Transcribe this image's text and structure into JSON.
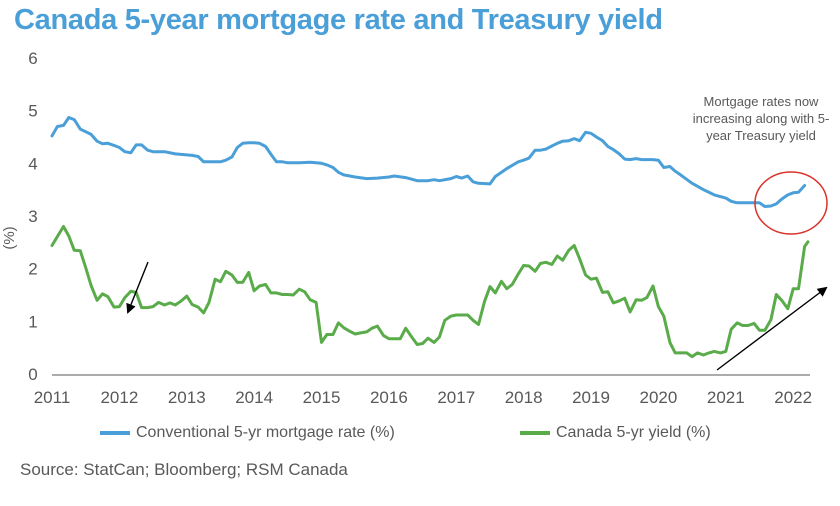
{
  "title": "Canada 5-year mortgage rate and Treasury yield",
  "source": "Source: StatCan; Bloomberg; RSM Canada",
  "annotation": "Mortgage rates now increasing along with 5-year Treasury yield",
  "colors": {
    "title": "#4a9fd8",
    "mortgage": "#4a9fd8",
    "yield": "#5aab4a",
    "highlight_circle": "#d9342b",
    "arrow": "#000000"
  },
  "chart_data": {
    "type": "line",
    "title": "Canada 5-year mortgage rate and Treasury yield",
    "xlabel": "",
    "ylabel": "(%)",
    "xlim": [
      2011,
      2022.25
    ],
    "ylim": [
      0,
      6
    ],
    "x_ticks": [
      "2011",
      "2012",
      "2013",
      "2014",
      "2015",
      "2016",
      "2017",
      "2018",
      "2019",
      "2020",
      "2021",
      "2022"
    ],
    "y_ticks": [
      "0",
      "1",
      "2",
      "3",
      "4",
      "5",
      "6"
    ],
    "grid": false,
    "legend_position": "bottom",
    "series": [
      {
        "name": "Conventional 5-yr mortgage rate (%)",
        "color": "#4a9fd8",
        "points": [
          [
            2011.0,
            4.52
          ],
          [
            2011.08,
            4.7
          ],
          [
            2011.17,
            4.72
          ],
          [
            2011.25,
            4.87
          ],
          [
            2011.33,
            4.83
          ],
          [
            2011.42,
            4.65
          ],
          [
            2011.5,
            4.6
          ],
          [
            2011.58,
            4.55
          ],
          [
            2011.67,
            4.42
          ],
          [
            2011.75,
            4.37
          ],
          [
            2011.83,
            4.38
          ],
          [
            2011.92,
            4.34
          ],
          [
            2012.0,
            4.3
          ],
          [
            2012.08,
            4.22
          ],
          [
            2012.17,
            4.2
          ],
          [
            2012.25,
            4.35
          ],
          [
            2012.33,
            4.35
          ],
          [
            2012.42,
            4.25
          ],
          [
            2012.5,
            4.22
          ],
          [
            2012.67,
            4.22
          ],
          [
            2012.83,
            4.18
          ],
          [
            2013.0,
            4.16
          ],
          [
            2013.08,
            4.15
          ],
          [
            2013.17,
            4.13
          ],
          [
            2013.25,
            4.03
          ],
          [
            2013.42,
            4.03
          ],
          [
            2013.5,
            4.03
          ],
          [
            2013.58,
            4.06
          ],
          [
            2013.67,
            4.12
          ],
          [
            2013.75,
            4.3
          ],
          [
            2013.83,
            4.38
          ],
          [
            2013.92,
            4.39
          ],
          [
            2014.0,
            4.39
          ],
          [
            2014.08,
            4.38
          ],
          [
            2014.17,
            4.32
          ],
          [
            2014.25,
            4.17
          ],
          [
            2014.33,
            4.03
          ],
          [
            2014.42,
            4.03
          ],
          [
            2014.5,
            4.01
          ],
          [
            2014.67,
            4.01
          ],
          [
            2014.83,
            4.02
          ],
          [
            2015.0,
            4.0
          ],
          [
            2015.08,
            3.97
          ],
          [
            2015.17,
            3.92
          ],
          [
            2015.25,
            3.83
          ],
          [
            2015.33,
            3.78
          ],
          [
            2015.5,
            3.74
          ],
          [
            2015.67,
            3.71
          ],
          [
            2015.83,
            3.72
          ],
          [
            2016.0,
            3.74
          ],
          [
            2016.08,
            3.76
          ],
          [
            2016.25,
            3.73
          ],
          [
            2016.42,
            3.67
          ],
          [
            2016.58,
            3.67
          ],
          [
            2016.67,
            3.69
          ],
          [
            2016.75,
            3.67
          ],
          [
            2016.92,
            3.71
          ],
          [
            2017.0,
            3.75
          ],
          [
            2017.08,
            3.72
          ],
          [
            2017.17,
            3.76
          ],
          [
            2017.25,
            3.65
          ],
          [
            2017.33,
            3.62
          ],
          [
            2017.5,
            3.61
          ],
          [
            2017.58,
            3.75
          ],
          [
            2017.75,
            3.9
          ],
          [
            2017.92,
            4.03
          ],
          [
            2018.0,
            4.06
          ],
          [
            2018.08,
            4.1
          ],
          [
            2018.17,
            4.25
          ],
          [
            2018.25,
            4.25
          ],
          [
            2018.33,
            4.27
          ],
          [
            2018.42,
            4.33
          ],
          [
            2018.5,
            4.38
          ],
          [
            2018.58,
            4.42
          ],
          [
            2018.67,
            4.43
          ],
          [
            2018.75,
            4.47
          ],
          [
            2018.83,
            4.43
          ],
          [
            2018.92,
            4.59
          ],
          [
            2019.0,
            4.57
          ],
          [
            2019.08,
            4.5
          ],
          [
            2019.17,
            4.43
          ],
          [
            2019.25,
            4.32
          ],
          [
            2019.33,
            4.26
          ],
          [
            2019.42,
            4.18
          ],
          [
            2019.5,
            4.08
          ],
          [
            2019.58,
            4.07
          ],
          [
            2019.67,
            4.09
          ],
          [
            2019.75,
            4.07
          ],
          [
            2019.83,
            4.07
          ],
          [
            2019.92,
            4.07
          ],
          [
            2020.0,
            4.06
          ],
          [
            2020.08,
            3.92
          ],
          [
            2020.17,
            3.94
          ],
          [
            2020.25,
            3.85
          ],
          [
            2020.33,
            3.78
          ],
          [
            2020.5,
            3.62
          ],
          [
            2020.67,
            3.5
          ],
          [
            2020.83,
            3.4
          ],
          [
            2021.0,
            3.34
          ],
          [
            2021.08,
            3.28
          ],
          [
            2021.17,
            3.25
          ],
          [
            2021.33,
            3.25
          ],
          [
            2021.5,
            3.25
          ],
          [
            2021.58,
            3.18
          ],
          [
            2021.67,
            3.19
          ],
          [
            2021.75,
            3.23
          ],
          [
            2021.83,
            3.32
          ],
          [
            2021.92,
            3.4
          ],
          [
            2022.0,
            3.44
          ],
          [
            2022.08,
            3.45
          ],
          [
            2022.17,
            3.58
          ]
        ]
      },
      {
        "name": "Canada 5-yr yield (%)",
        "color": "#5aab4a",
        "points": [
          [
            2011.0,
            2.44
          ],
          [
            2011.08,
            2.61
          ],
          [
            2011.17,
            2.8
          ],
          [
            2011.25,
            2.62
          ],
          [
            2011.33,
            2.35
          ],
          [
            2011.42,
            2.34
          ],
          [
            2011.5,
            2.02
          ],
          [
            2011.58,
            1.68
          ],
          [
            2011.67,
            1.4
          ],
          [
            2011.75,
            1.52
          ],
          [
            2011.83,
            1.47
          ],
          [
            2011.92,
            1.27
          ],
          [
            2012.0,
            1.28
          ],
          [
            2012.08,
            1.45
          ],
          [
            2012.17,
            1.57
          ],
          [
            2012.25,
            1.55
          ],
          [
            2012.33,
            1.26
          ],
          [
            2012.42,
            1.26
          ],
          [
            2012.5,
            1.28
          ],
          [
            2012.58,
            1.36
          ],
          [
            2012.67,
            1.31
          ],
          [
            2012.75,
            1.35
          ],
          [
            2012.83,
            1.31
          ],
          [
            2012.92,
            1.39
          ],
          [
            2013.0,
            1.48
          ],
          [
            2013.08,
            1.32
          ],
          [
            2013.17,
            1.27
          ],
          [
            2013.25,
            1.16
          ],
          [
            2013.33,
            1.36
          ],
          [
            2013.42,
            1.8
          ],
          [
            2013.5,
            1.75
          ],
          [
            2013.58,
            1.95
          ],
          [
            2013.67,
            1.88
          ],
          [
            2013.75,
            1.74
          ],
          [
            2013.83,
            1.74
          ],
          [
            2013.92,
            1.93
          ],
          [
            2014.0,
            1.58
          ],
          [
            2014.08,
            1.67
          ],
          [
            2014.17,
            1.7
          ],
          [
            2014.25,
            1.54
          ],
          [
            2014.33,
            1.54
          ],
          [
            2014.42,
            1.51
          ],
          [
            2014.5,
            1.51
          ],
          [
            2014.58,
            1.5
          ],
          [
            2014.67,
            1.61
          ],
          [
            2014.75,
            1.56
          ],
          [
            2014.83,
            1.41
          ],
          [
            2014.92,
            1.36
          ],
          [
            2015.0,
            0.6
          ],
          [
            2015.08,
            0.75
          ],
          [
            2015.17,
            0.75
          ],
          [
            2015.25,
            0.97
          ],
          [
            2015.33,
            0.88
          ],
          [
            2015.42,
            0.81
          ],
          [
            2015.5,
            0.76
          ],
          [
            2015.58,
            0.78
          ],
          [
            2015.67,
            0.8
          ],
          [
            2015.75,
            0.87
          ],
          [
            2015.83,
            0.91
          ],
          [
            2015.92,
            0.73
          ],
          [
            2016.0,
            0.67
          ],
          [
            2016.17,
            0.67
          ],
          [
            2016.25,
            0.87
          ],
          [
            2016.33,
            0.72
          ],
          [
            2016.42,
            0.56
          ],
          [
            2016.5,
            0.58
          ],
          [
            2016.58,
            0.68
          ],
          [
            2016.67,
            0.6
          ],
          [
            2016.75,
            0.7
          ],
          [
            2016.83,
            1.02
          ],
          [
            2016.92,
            1.1
          ],
          [
            2017.0,
            1.12
          ],
          [
            2017.08,
            1.12
          ],
          [
            2017.17,
            1.12
          ],
          [
            2017.25,
            1.02
          ],
          [
            2017.33,
            0.94
          ],
          [
            2017.42,
            1.38
          ],
          [
            2017.5,
            1.66
          ],
          [
            2017.58,
            1.54
          ],
          [
            2017.67,
            1.76
          ],
          [
            2017.75,
            1.62
          ],
          [
            2017.83,
            1.7
          ],
          [
            2017.92,
            1.9
          ],
          [
            2018.0,
            2.06
          ],
          [
            2018.08,
            2.05
          ],
          [
            2018.17,
            1.95
          ],
          [
            2018.25,
            2.1
          ],
          [
            2018.33,
            2.12
          ],
          [
            2018.42,
            2.08
          ],
          [
            2018.5,
            2.24
          ],
          [
            2018.58,
            2.16
          ],
          [
            2018.67,
            2.35
          ],
          [
            2018.75,
            2.44
          ],
          [
            2018.83,
            2.19
          ],
          [
            2018.92,
            1.88
          ],
          [
            2019.0,
            1.8
          ],
          [
            2019.08,
            1.82
          ],
          [
            2019.17,
            1.55
          ],
          [
            2019.25,
            1.56
          ],
          [
            2019.33,
            1.35
          ],
          [
            2019.42,
            1.39
          ],
          [
            2019.5,
            1.44
          ],
          [
            2019.58,
            1.18
          ],
          [
            2019.67,
            1.41
          ],
          [
            2019.75,
            1.4
          ],
          [
            2019.83,
            1.45
          ],
          [
            2019.92,
            1.67
          ],
          [
            2020.0,
            1.28
          ],
          [
            2020.08,
            1.1
          ],
          [
            2020.17,
            0.6
          ],
          [
            2020.25,
            0.4
          ],
          [
            2020.42,
            0.4
          ],
          [
            2020.5,
            0.33
          ],
          [
            2020.58,
            0.4
          ],
          [
            2020.67,
            0.36
          ],
          [
            2020.75,
            0.4
          ],
          [
            2020.83,
            0.43
          ],
          [
            2020.92,
            0.4
          ],
          [
            2021.0,
            0.43
          ],
          [
            2021.08,
            0.85
          ],
          [
            2021.17,
            0.97
          ],
          [
            2021.25,
            0.92
          ],
          [
            2021.33,
            0.92
          ],
          [
            2021.42,
            0.96
          ],
          [
            2021.5,
            0.83
          ],
          [
            2021.58,
            0.83
          ],
          [
            2021.67,
            1.03
          ],
          [
            2021.75,
            1.51
          ],
          [
            2021.83,
            1.4
          ],
          [
            2021.92,
            1.24
          ],
          [
            2022.0,
            1.62
          ],
          [
            2022.08,
            1.62
          ],
          [
            2022.17,
            2.42
          ],
          [
            2022.22,
            2.51
          ]
        ]
      }
    ]
  }
}
